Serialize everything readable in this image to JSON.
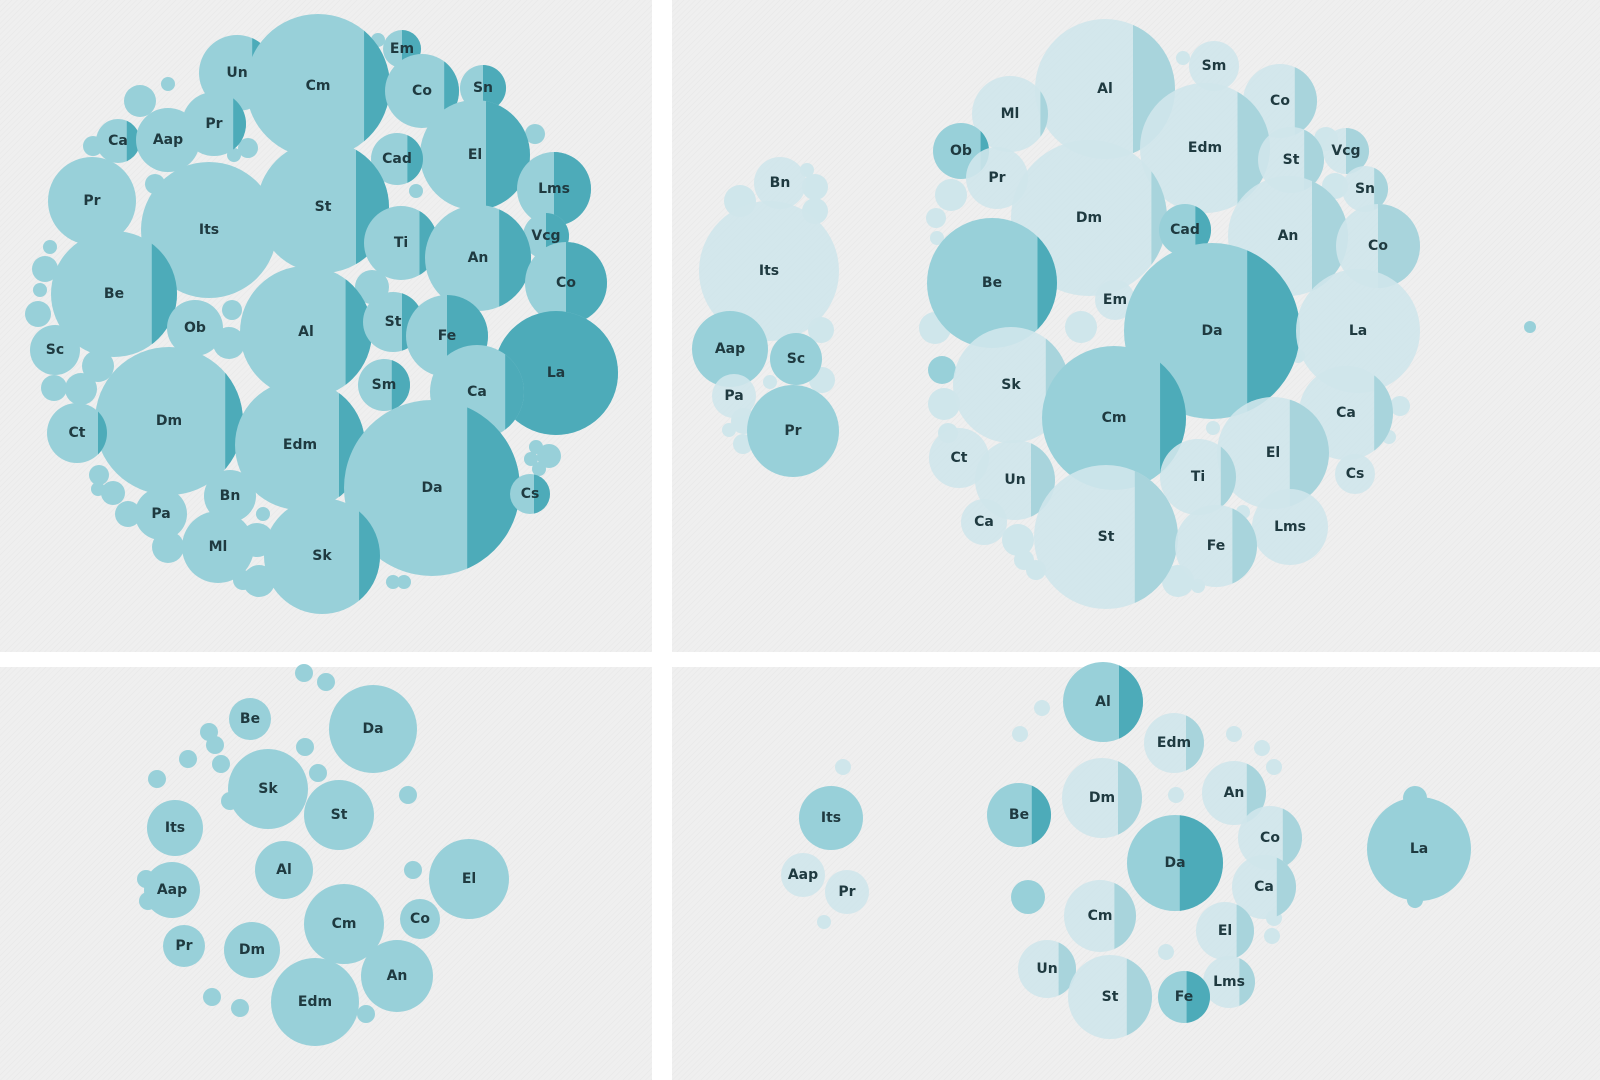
{
  "colors": {
    "background": "#efefef",
    "bubble_solid": "#98d0d9",
    "bubble_accent": "#4dabb9",
    "bubble_faded": "#cfe6eb",
    "bubble_faded_accent": "#a8d4dc",
    "label": "#1f3a40"
  },
  "chart_data": [
    {
      "type": "bubble",
      "panel": "top-left",
      "description_of_encoding": "circle area ~ size value; darker right segment ~ share",
      "bubbles": [
        {
          "label": "Un",
          "size": 38,
          "share": 0.3
        },
        {
          "label": "Cm",
          "size": 72,
          "share": 0.18
        },
        {
          "label": "Em",
          "size": 19,
          "share": 0.5
        },
        {
          "label": "Co",
          "size": 37,
          "share": 0.2
        },
        {
          "label": "Sn",
          "size": 23,
          "share": 0.5
        },
        {
          "label": "Ca",
          "size": 22,
          "share": 0.3
        },
        {
          "label": "Aap",
          "size": 32,
          "share": 0
        },
        {
          "label": "Pr",
          "size": 32,
          "share": 0.2
        },
        {
          "label": "El",
          "size": 55,
          "share": 0.4
        },
        {
          "label": "Cad",
          "size": 26,
          "share": 0.3
        },
        {
          "label": "Pr",
          "size": 44,
          "share": 0
        },
        {
          "label": "Its",
          "size": 68,
          "share": 0
        },
        {
          "label": "St",
          "size": 66,
          "share": 0.25
        },
        {
          "label": "Lms",
          "size": 37,
          "share": 0.5
        },
        {
          "label": "Ti",
          "size": 37,
          "share": 0.25
        },
        {
          "label": "Vcg",
          "size": 23,
          "share": 0.5
        },
        {
          "label": "An",
          "size": 53,
          "share": 0.3
        },
        {
          "label": "Be",
          "size": 63,
          "share": 0.2
        },
        {
          "label": "Co",
          "size": 41,
          "share": 0.5
        },
        {
          "label": "Al",
          "size": 66,
          "share": 0.2
        },
        {
          "label": "Ob",
          "size": 28,
          "share": 0
        },
        {
          "label": "St",
          "size": 30,
          "share": 0.35
        },
        {
          "label": "Fe",
          "size": 41,
          "share": 0.5
        },
        {
          "label": "La",
          "size": 62,
          "share": 1
        },
        {
          "label": "Sc",
          "size": 25,
          "share": 0
        },
        {
          "label": "Dm",
          "size": 74,
          "share": 0.12
        },
        {
          "label": "Sm",
          "size": 26,
          "share": 0.35
        },
        {
          "label": "Ca",
          "size": 47,
          "share": 0.2
        },
        {
          "label": "Ct",
          "size": 30,
          "share": 0.15
        },
        {
          "label": "Edm",
          "size": 65,
          "share": 0.2
        },
        {
          "label": "Da",
          "size": 88,
          "share": 0.3
        },
        {
          "label": "Bn",
          "size": 26,
          "share": 0
        },
        {
          "label": "Cs",
          "size": 20,
          "share": 0.4
        },
        {
          "label": "Pa",
          "size": 26,
          "share": 0
        },
        {
          "label": "Ml",
          "size": 36,
          "share": 0
        },
        {
          "label": "Sk",
          "size": 58,
          "share": 0.18
        }
      ]
    },
    {
      "type": "bubble",
      "panel": "top-right",
      "bubbles": [
        {
          "label": "Al",
          "size": 70,
          "share": 0.3
        },
        {
          "label": "Sm",
          "size": 25,
          "share": 0
        },
        {
          "label": "Ml",
          "size": 38,
          "share": 0.1
        },
        {
          "label": "Co",
          "size": 37,
          "share": 0.3
        },
        {
          "label": "Edm",
          "size": 65,
          "share": 0.25
        },
        {
          "label": "Ob",
          "size": 28,
          "share": 0.15
        },
        {
          "label": "St",
          "size": 33,
          "share": 0.3
        },
        {
          "label": "Vcg",
          "size": 23,
          "share": 0.5
        },
        {
          "label": "Bn",
          "size": 26,
          "share": 0
        },
        {
          "label": "Pr",
          "size": 31,
          "share": 0
        },
        {
          "label": "Sn",
          "size": 23,
          "share": 0.3
        },
        {
          "label": "Dm",
          "size": 78,
          "share": 0.1
        },
        {
          "label": "Its",
          "size": 70,
          "share": 0
        },
        {
          "label": "Cad",
          "size": 26,
          "share": 0.3
        },
        {
          "label": "An",
          "size": 60,
          "share": 0.3
        },
        {
          "label": "Co",
          "size": 42,
          "share": 0.5
        },
        {
          "label": "Be",
          "size": 65,
          "share": 0.15
        },
        {
          "label": "Em",
          "size": 20,
          "share": 0
        },
        {
          "label": "Da",
          "size": 88,
          "share": 0.3
        },
        {
          "label": "La",
          "size": 62,
          "share": 0
        },
        {
          "label": "Aap",
          "size": 38,
          "share": 0
        },
        {
          "label": "Sc",
          "size": 26,
          "share": 0
        },
        {
          "label": "Sk",
          "size": 58,
          "share": 0.2
        },
        {
          "label": "Pa",
          "size": 22,
          "share": 0
        },
        {
          "label": "Cm",
          "size": 72,
          "share": 0.18
        },
        {
          "label": "Ca",
          "size": 47,
          "share": 0.2
        },
        {
          "label": "Pr",
          "size": 46,
          "share": 0
        },
        {
          "label": "Ct",
          "size": 30,
          "share": 0
        },
        {
          "label": "El",
          "size": 56,
          "share": 0.35
        },
        {
          "label": "Cs",
          "size": 20,
          "share": 0
        },
        {
          "label": "Un",
          "size": 40,
          "share": 0.3
        },
        {
          "label": "Ti",
          "size": 38,
          "share": 0.2
        },
        {
          "label": "Ca",
          "size": 23,
          "share": 0
        },
        {
          "label": "Lms",
          "size": 38,
          "share": 0
        },
        {
          "label": "St",
          "size": 72,
          "share": 0.3
        },
        {
          "label": "Fe",
          "size": 41,
          "share": 0.3
        }
      ]
    },
    {
      "type": "bubble",
      "panel": "bottom-left",
      "bubbles": [
        {
          "label": "Be",
          "size": 21,
          "share": 0
        },
        {
          "label": "Da",
          "size": 44,
          "share": 0
        },
        {
          "label": "Sk",
          "size": 40,
          "share": 0
        },
        {
          "label": "St",
          "size": 35,
          "share": 0
        },
        {
          "label": "Its",
          "size": 28,
          "share": 0
        },
        {
          "label": "Al",
          "size": 29,
          "share": 0
        },
        {
          "label": "El",
          "size": 40,
          "share": 0
        },
        {
          "label": "Aap",
          "size": 28,
          "share": 0
        },
        {
          "label": "Cm",
          "size": 40,
          "share": 0
        },
        {
          "label": "Co",
          "size": 20,
          "share": 0
        },
        {
          "label": "Pr",
          "size": 21,
          "share": 0
        },
        {
          "label": "Dm",
          "size": 28,
          "share": 0
        },
        {
          "label": "An",
          "size": 36,
          "share": 0
        },
        {
          "label": "Edm",
          "size": 44,
          "share": 0
        }
      ]
    },
    {
      "type": "bubble",
      "panel": "bottom-right",
      "bubbles": [
        {
          "label": "Al",
          "size": 40,
          "share": 0.3
        },
        {
          "label": "Edm",
          "size": 30,
          "share": 0.3
        },
        {
          "label": "Dm",
          "size": 40,
          "share": 0.3
        },
        {
          "label": "An",
          "size": 32,
          "share": 0.3
        },
        {
          "label": "Be",
          "size": 32,
          "share": 0.3
        },
        {
          "label": "Its",
          "size": 32,
          "share": 0
        },
        {
          "label": "Co",
          "size": 32,
          "share": 0.3
        },
        {
          "label": "Da",
          "size": 48,
          "share": 0.45
        },
        {
          "label": "La",
          "size": 52,
          "share": 0
        },
        {
          "label": "Aap",
          "size": 22,
          "share": 0
        },
        {
          "label": "Pr",
          "size": 22,
          "share": 0
        },
        {
          "label": "Ca",
          "size": 32,
          "share": 0.3
        },
        {
          "label": "Cm",
          "size": 36,
          "share": 0.3
        },
        {
          "label": "El",
          "size": 29,
          "share": 0.3
        },
        {
          "label": "Un",
          "size": 29,
          "share": 0.3
        },
        {
          "label": "Lms",
          "size": 26,
          "share": 0.3
        },
        {
          "label": "St",
          "size": 42,
          "share": 0.3
        },
        {
          "label": "Fe",
          "size": 26,
          "share": 0.45
        }
      ]
    }
  ]
}
